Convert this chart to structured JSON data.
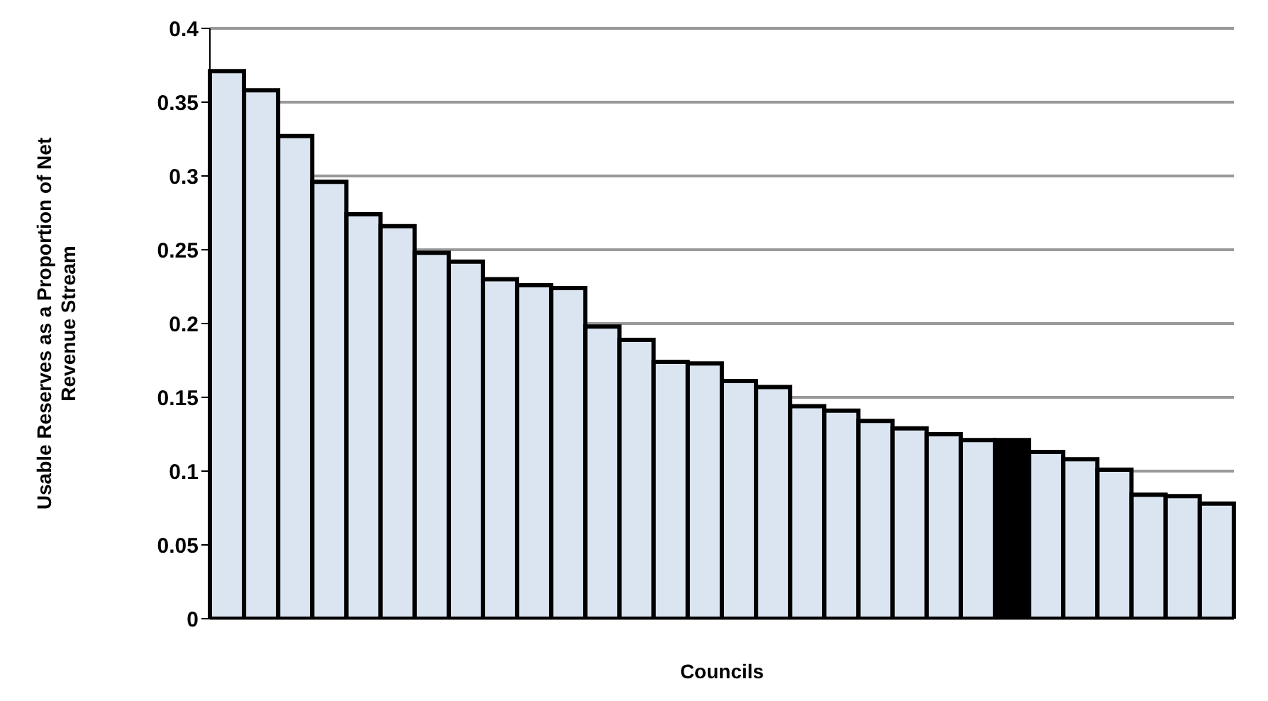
{
  "chart_data": {
    "type": "bar",
    "xlabel": "Councils",
    "ylabel": "Usable Reserves as a Proportion of Net Revenue Stream",
    "categories": [
      null,
      null,
      null,
      null,
      null,
      null,
      null,
      null,
      null,
      null,
      null,
      null,
      null,
      null,
      null,
      null,
      null,
      null,
      null,
      null,
      null,
      null,
      null,
      null,
      null,
      null,
      null,
      null,
      null,
      null
    ],
    "values": [
      0.371,
      0.358,
      0.327,
      0.296,
      0.274,
      0.266,
      0.248,
      0.242,
      0.23,
      0.226,
      0.224,
      0.198,
      0.189,
      0.174,
      0.173,
      0.161,
      0.157,
      0.144,
      0.141,
      0.134,
      0.129,
      0.125,
      0.121,
      0.121,
      0.113,
      0.108,
      0.101,
      0.084,
      0.083,
      0.078
    ],
    "colors": [
      "#dbe5f1",
      "#dbe5f1",
      "#dbe5f1",
      "#dbe5f1",
      "#dbe5f1",
      "#dbe5f1",
      "#dbe5f1",
      "#dbe5f1",
      "#dbe5f1",
      "#dbe5f1",
      "#dbe5f1",
      "#dbe5f1",
      "#dbe5f1",
      "#dbe5f1",
      "#dbe5f1",
      "#dbe5f1",
      "#dbe5f1",
      "#dbe5f1",
      "#dbe5f1",
      "#dbe5f1",
      "#dbe5f1",
      "#dbe5f1",
      "#dbe5f1",
      "#000000",
      "#dbe5f1",
      "#dbe5f1",
      "#dbe5f1",
      "#dbe5f1",
      "#dbe5f1",
      "#dbe5f1"
    ],
    "ylim": [
      0,
      0.4
    ],
    "yticks": [
      0,
      0.05,
      0.1,
      0.15,
      0.2,
      0.25,
      0.3,
      0.35,
      0.4
    ],
    "grid": "y",
    "tick_labels": "y",
    "legend": false
  }
}
